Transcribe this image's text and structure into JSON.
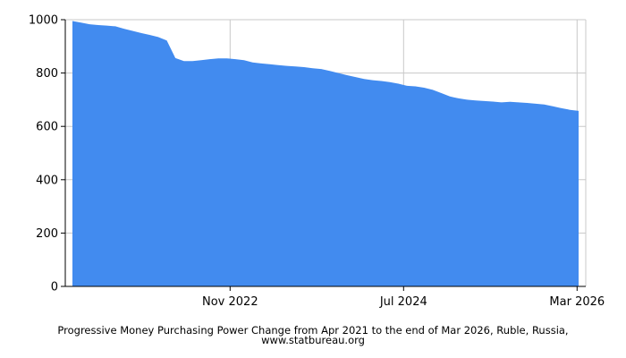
{
  "chart_data": {
    "type": "area",
    "title": "Progressive Money Purchasing Power Change from Apr 2021 to the end of Mar 2026, Ruble, Russia, www.statbureau.org",
    "xlabel": "",
    "ylabel": "",
    "ylim": [
      0,
      1000
    ],
    "yticks": [
      0,
      200,
      400,
      600,
      800,
      1000
    ],
    "xrange": [
      "2021-04",
      "2026-03"
    ],
    "xticks": [
      {
        "label": "Nov 2022",
        "date": "2022-11"
      },
      {
        "label": "Jul 2024",
        "date": "2024-07"
      },
      {
        "label": "Mar 2026",
        "date": "2026-03"
      }
    ],
    "grid": true,
    "fill_color": "#428BEF",
    "x": [
      "2021-04",
      "2021-05",
      "2021-06",
      "2021-07",
      "2021-08",
      "2021-09",
      "2021-10",
      "2021-11",
      "2021-12",
      "2022-01",
      "2022-02",
      "2022-03",
      "2022-04",
      "2022-05",
      "2022-06",
      "2022-07",
      "2022-08",
      "2022-09",
      "2022-10",
      "2022-11",
      "2022-12",
      "2023-01",
      "2023-02",
      "2023-03",
      "2023-04",
      "2023-05",
      "2023-06",
      "2023-07",
      "2023-08",
      "2023-09",
      "2023-10",
      "2023-11",
      "2023-12",
      "2024-01",
      "2024-02",
      "2024-03",
      "2024-04",
      "2024-05",
      "2024-06",
      "2024-07",
      "2024-08",
      "2024-09",
      "2024-10",
      "2024-11",
      "2024-12",
      "2025-01",
      "2025-02",
      "2025-03",
      "2025-04",
      "2025-05",
      "2025-06",
      "2025-07",
      "2025-08",
      "2025-09",
      "2025-10",
      "2025-11",
      "2025-12",
      "2026-01",
      "2026-02",
      "2026-03"
    ],
    "values": [
      995,
      989,
      983,
      980,
      978,
      975,
      966,
      958,
      950,
      943,
      935,
      922,
      856,
      845,
      845,
      848,
      852,
      855,
      855,
      852,
      848,
      840,
      836,
      833,
      830,
      827,
      825,
      822,
      818,
      815,
      808,
      800,
      792,
      785,
      778,
      773,
      770,
      766,
      760,
      752,
      750,
      745,
      737,
      725,
      712,
      705,
      700,
      697,
      695,
      693,
      690,
      692,
      690,
      688,
      685,
      682,
      675,
      668,
      662,
      658
    ]
  }
}
